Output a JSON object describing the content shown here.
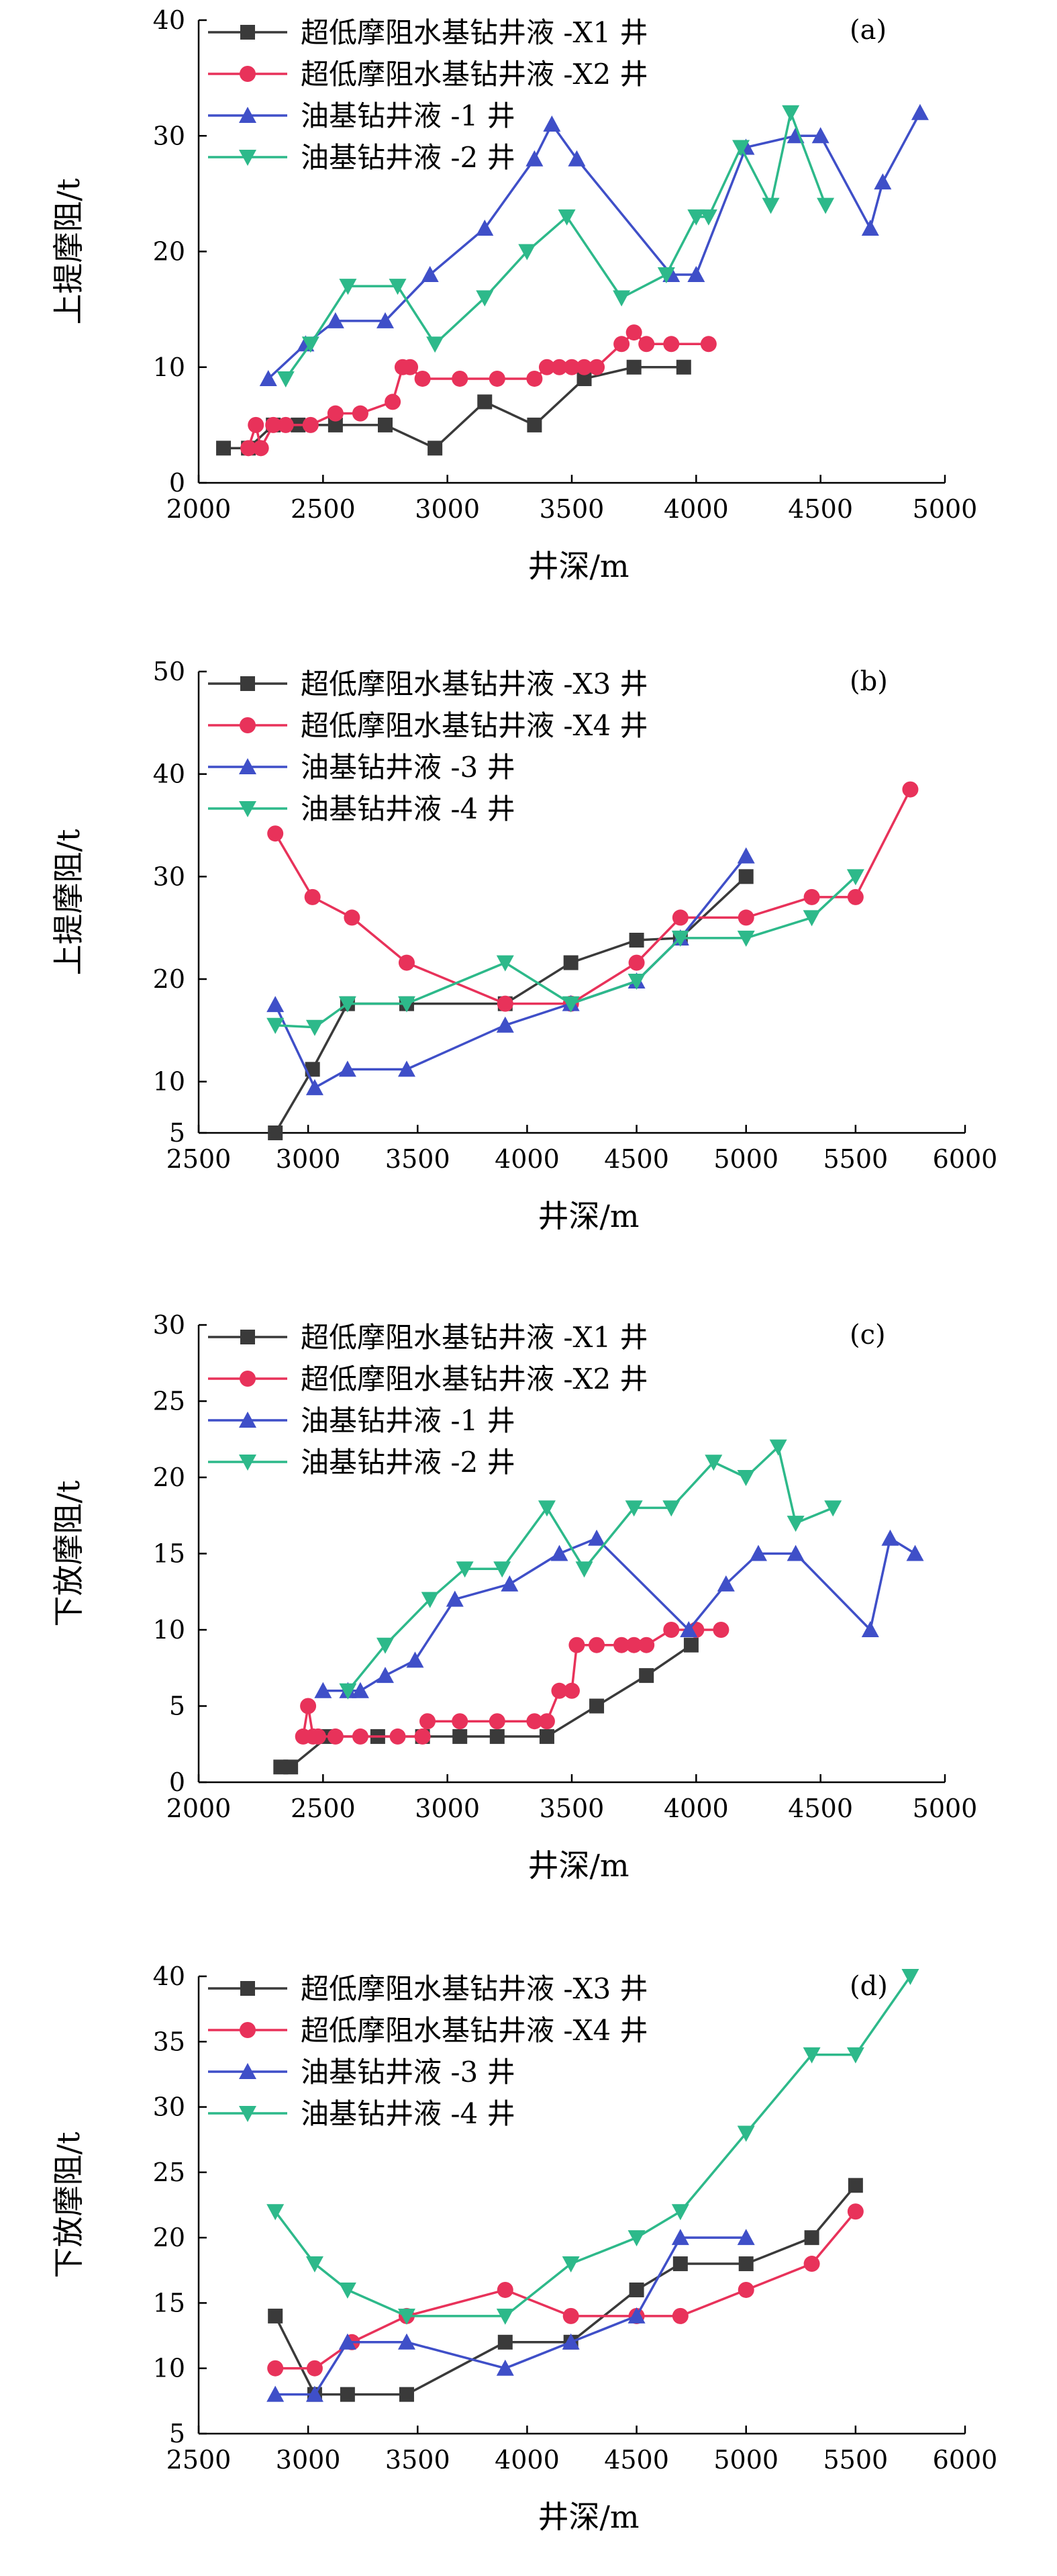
{
  "chart_data": [
    {
      "type": "line",
      "panel_label": "(a)",
      "xlabel": "井深/m",
      "ylabel": "上提摩阻/t",
      "xlim": [
        2000,
        5000
      ],
      "ylim": [
        0,
        40
      ],
      "xticks": [
        2000,
        2500,
        3000,
        3500,
        4000,
        4500,
        5000
      ],
      "yticks": [
        0,
        10,
        20,
        30,
        40
      ],
      "grid": false,
      "legend": "top-left",
      "series": [
        {
          "name": "超低摩阻水基钻井液 -X1 井",
          "color": "#3a3a3a",
          "marker": "square",
          "x": [
            2100,
            2200,
            2300,
            2400,
            2550,
            2750,
            2950,
            3150,
            3350,
            3550,
            3750,
            3950
          ],
          "y": [
            3,
            3,
            5,
            5,
            5,
            5,
            3,
            7,
            5,
            9,
            10,
            10
          ]
        },
        {
          "name": "超低摩阻水基钻井液 -X2 井",
          "color": "#e8325a",
          "marker": "circle",
          "x": [
            2200,
            2230,
            2250,
            2300,
            2350,
            2450,
            2550,
            2650,
            2780,
            2820,
            2850,
            2900,
            3050,
            3200,
            3350,
            3400,
            3450,
            3500,
            3550,
            3600,
            3700,
            3750,
            3800,
            3900,
            4050
          ],
          "y": [
            3,
            5,
            3,
            5,
            5,
            5,
            6,
            6,
            7,
            10,
            10,
            9,
            9,
            9,
            9,
            10,
            10,
            10,
            10,
            10,
            12,
            13,
            12,
            12,
            12
          ]
        },
        {
          "name": "油基钻井液 -1 井",
          "color": "#3f4fc8",
          "marker": "triangle-up",
          "x": [
            2280,
            2430,
            2550,
            2750,
            2930,
            3150,
            3350,
            3420,
            3520,
            3900,
            4000,
            4200,
            4400,
            4500,
            4700,
            4750,
            4900
          ],
          "y": [
            9,
            12,
            14,
            14,
            18,
            22,
            28,
            31,
            28,
            18,
            18,
            29,
            30,
            30,
            22,
            26,
            32
          ]
        },
        {
          "name": "油基钻井液 -2 井",
          "color": "#2db98a",
          "marker": "triangle-down",
          "x": [
            2350,
            2450,
            2600,
            2800,
            2950,
            3150,
            3320,
            3480,
            3700,
            3880,
            4000,
            4050,
            4180,
            4300,
            4380,
            4520
          ],
          "y": [
            9,
            12,
            17,
            17,
            12,
            16,
            20,
            23,
            16,
            18,
            23,
            23,
            29,
            24,
            32,
            24
          ]
        }
      ]
    },
    {
      "type": "line",
      "panel_label": "(b)",
      "xlabel": "井深/m",
      "ylabel": "上提摩阻/t",
      "xlim": [
        2500,
        6000
      ],
      "ylim": [
        5,
        50
      ],
      "xticks": [
        2500,
        3000,
        3500,
        4000,
        4500,
        5000,
        5500,
        6000
      ],
      "yticks": [
        5,
        10,
        20,
        30,
        40,
        50
      ],
      "grid": false,
      "legend": "top-left",
      "series": [
        {
          "name": "超低摩阻水基钻井液 -X3 井",
          "color": "#3a3a3a",
          "marker": "square",
          "x": [
            2850,
            3020,
            3180,
            3450,
            3900,
            4200,
            4500,
            4700,
            5000
          ],
          "y": [
            5,
            11.2,
            17.6,
            17.6,
            17.6,
            21.6,
            23.8,
            24,
            30
          ]
        },
        {
          "name": "超低摩阻水基钻井液 -X4 井",
          "color": "#e8325a",
          "marker": "circle",
          "x": [
            2850,
            3020,
            3200,
            3450,
            3900,
            4200,
            4500,
            4700,
            5000,
            5300,
            5500,
            5750
          ],
          "y": [
            34.2,
            28,
            26,
            21.6,
            17.6,
            17.6,
            21.6,
            26,
            26,
            28,
            28,
            38.5
          ]
        },
        {
          "name": "油基钻井液 -3 井",
          "color": "#3f4fc8",
          "marker": "triangle-up",
          "x": [
            2850,
            3030,
            3180,
            3450,
            3900,
            4200,
            4500,
            4700,
            5000
          ],
          "y": [
            17.5,
            9.4,
            11.2,
            11.2,
            15.5,
            17.6,
            19.8,
            24,
            32
          ]
        },
        {
          "name": "油基钻井液 -4 井",
          "color": "#2db98a",
          "marker": "triangle-down",
          "x": [
            2850,
            3030,
            3180,
            3450,
            3900,
            4200,
            4500,
            4700,
            5000,
            5300,
            5500
          ],
          "y": [
            15.5,
            15.3,
            17.6,
            17.6,
            21.6,
            17.6,
            19.8,
            24,
            24,
            26,
            30
          ]
        }
      ]
    },
    {
      "type": "line",
      "panel_label": "(c)",
      "xlabel": "井深/m",
      "ylabel": "下放摩阻/t",
      "xlim": [
        2000,
        5000
      ],
      "ylim": [
        0,
        30
      ],
      "xticks": [
        2000,
        2500,
        3000,
        3500,
        4000,
        4500,
        5000
      ],
      "yticks": [
        0,
        5,
        10,
        15,
        20,
        25,
        30
      ],
      "grid": false,
      "legend": "top-left",
      "series": [
        {
          "name": "超低摩阻水基钻井液 -X1 井",
          "color": "#3a3a3a",
          "marker": "square",
          "x": [
            2330,
            2370,
            2520,
            2720,
            2900,
            3050,
            3200,
            3400,
            3600,
            3800,
            3980
          ],
          "y": [
            1,
            1,
            3,
            3,
            3,
            3,
            3,
            3,
            5,
            7,
            9
          ]
        },
        {
          "name": "超低摩阻水基钻井液 -X2 井",
          "color": "#e8325a",
          "marker": "circle",
          "x": [
            2420,
            2440,
            2460,
            2480,
            2550,
            2650,
            2800,
            2900,
            2920,
            3050,
            3200,
            3350,
            3400,
            3450,
            3500,
            3520,
            3600,
            3700,
            3750,
            3800,
            3900,
            4000,
            4100
          ],
          "y": [
            3,
            5,
            3,
            3,
            3,
            3,
            3,
            3,
            4,
            4,
            4,
            4,
            4,
            6,
            6,
            9,
            9,
            9,
            9,
            9,
            10,
            10,
            10
          ]
        },
        {
          "name": "油基钻井液 -1 井",
          "color": "#3f4fc8",
          "marker": "triangle-up",
          "x": [
            2500,
            2600,
            2650,
            2750,
            2870,
            3030,
            3250,
            3450,
            3600,
            3970,
            4120,
            4250,
            4400,
            4700,
            4780,
            4880
          ],
          "y": [
            6,
            6,
            6,
            7,
            8,
            12,
            13,
            15,
            16,
            10,
            13,
            15,
            15,
            10,
            16,
            15
          ]
        },
        {
          "name": "油基钻井液 -2 井",
          "color": "#2db98a",
          "marker": "triangle-down",
          "x": [
            2600,
            2750,
            2930,
            3070,
            3220,
            3400,
            3550,
            3750,
            3900,
            4070,
            4200,
            4330,
            4400,
            4550
          ],
          "y": [
            6,
            9,
            12,
            14,
            14,
            18,
            14,
            18,
            18,
            21,
            20,
            22,
            17,
            18
          ]
        }
      ]
    },
    {
      "type": "line",
      "panel_label": "(d)",
      "xlabel": "井深/m",
      "ylabel": "下放摩阻/t",
      "xlim": [
        2500,
        6000
      ],
      "ylim": [
        5,
        40
      ],
      "xticks": [
        2500,
        3000,
        3500,
        4000,
        4500,
        5000,
        5500,
        6000
      ],
      "yticks": [
        5,
        10,
        15,
        20,
        25,
        30,
        35,
        40
      ],
      "grid": false,
      "legend": "top-left",
      "series": [
        {
          "name": "超低摩阻水基钻井液 -X3 井",
          "color": "#3a3a3a",
          "marker": "square",
          "x": [
            2850,
            3030,
            3180,
            3450,
            3900,
            4200,
            4500,
            4700,
            5000,
            5300,
            5500
          ],
          "y": [
            14,
            8,
            8,
            8,
            12,
            12,
            16,
            18,
            18,
            20,
            24
          ]
        },
        {
          "name": "超低摩阻水基钻井液 -X4 井",
          "color": "#e8325a",
          "marker": "circle",
          "x": [
            2850,
            3030,
            3200,
            3450,
            3900,
            4200,
            4500,
            4700,
            5000,
            5300,
            5500
          ],
          "y": [
            10,
            10,
            12,
            14,
            16,
            14,
            14,
            14,
            16,
            18,
            22
          ]
        },
        {
          "name": "油基钻井液 -3 井",
          "color": "#3f4fc8",
          "marker": "triangle-up",
          "x": [
            2850,
            3030,
            3180,
            3450,
            3900,
            4200,
            4500,
            4700,
            5000
          ],
          "y": [
            8,
            8,
            12,
            12,
            10,
            12,
            14,
            20,
            20
          ]
        },
        {
          "name": "油基钻井液 -4 井",
          "color": "#2db98a",
          "marker": "triangle-down",
          "x": [
            2850,
            3030,
            3180,
            3450,
            3900,
            4200,
            4500,
            4700,
            5000,
            5300,
            5500,
            5750
          ],
          "y": [
            22,
            18,
            16,
            14,
            14,
            18,
            20,
            22,
            28,
            34,
            34,
            40
          ]
        }
      ]
    }
  ]
}
